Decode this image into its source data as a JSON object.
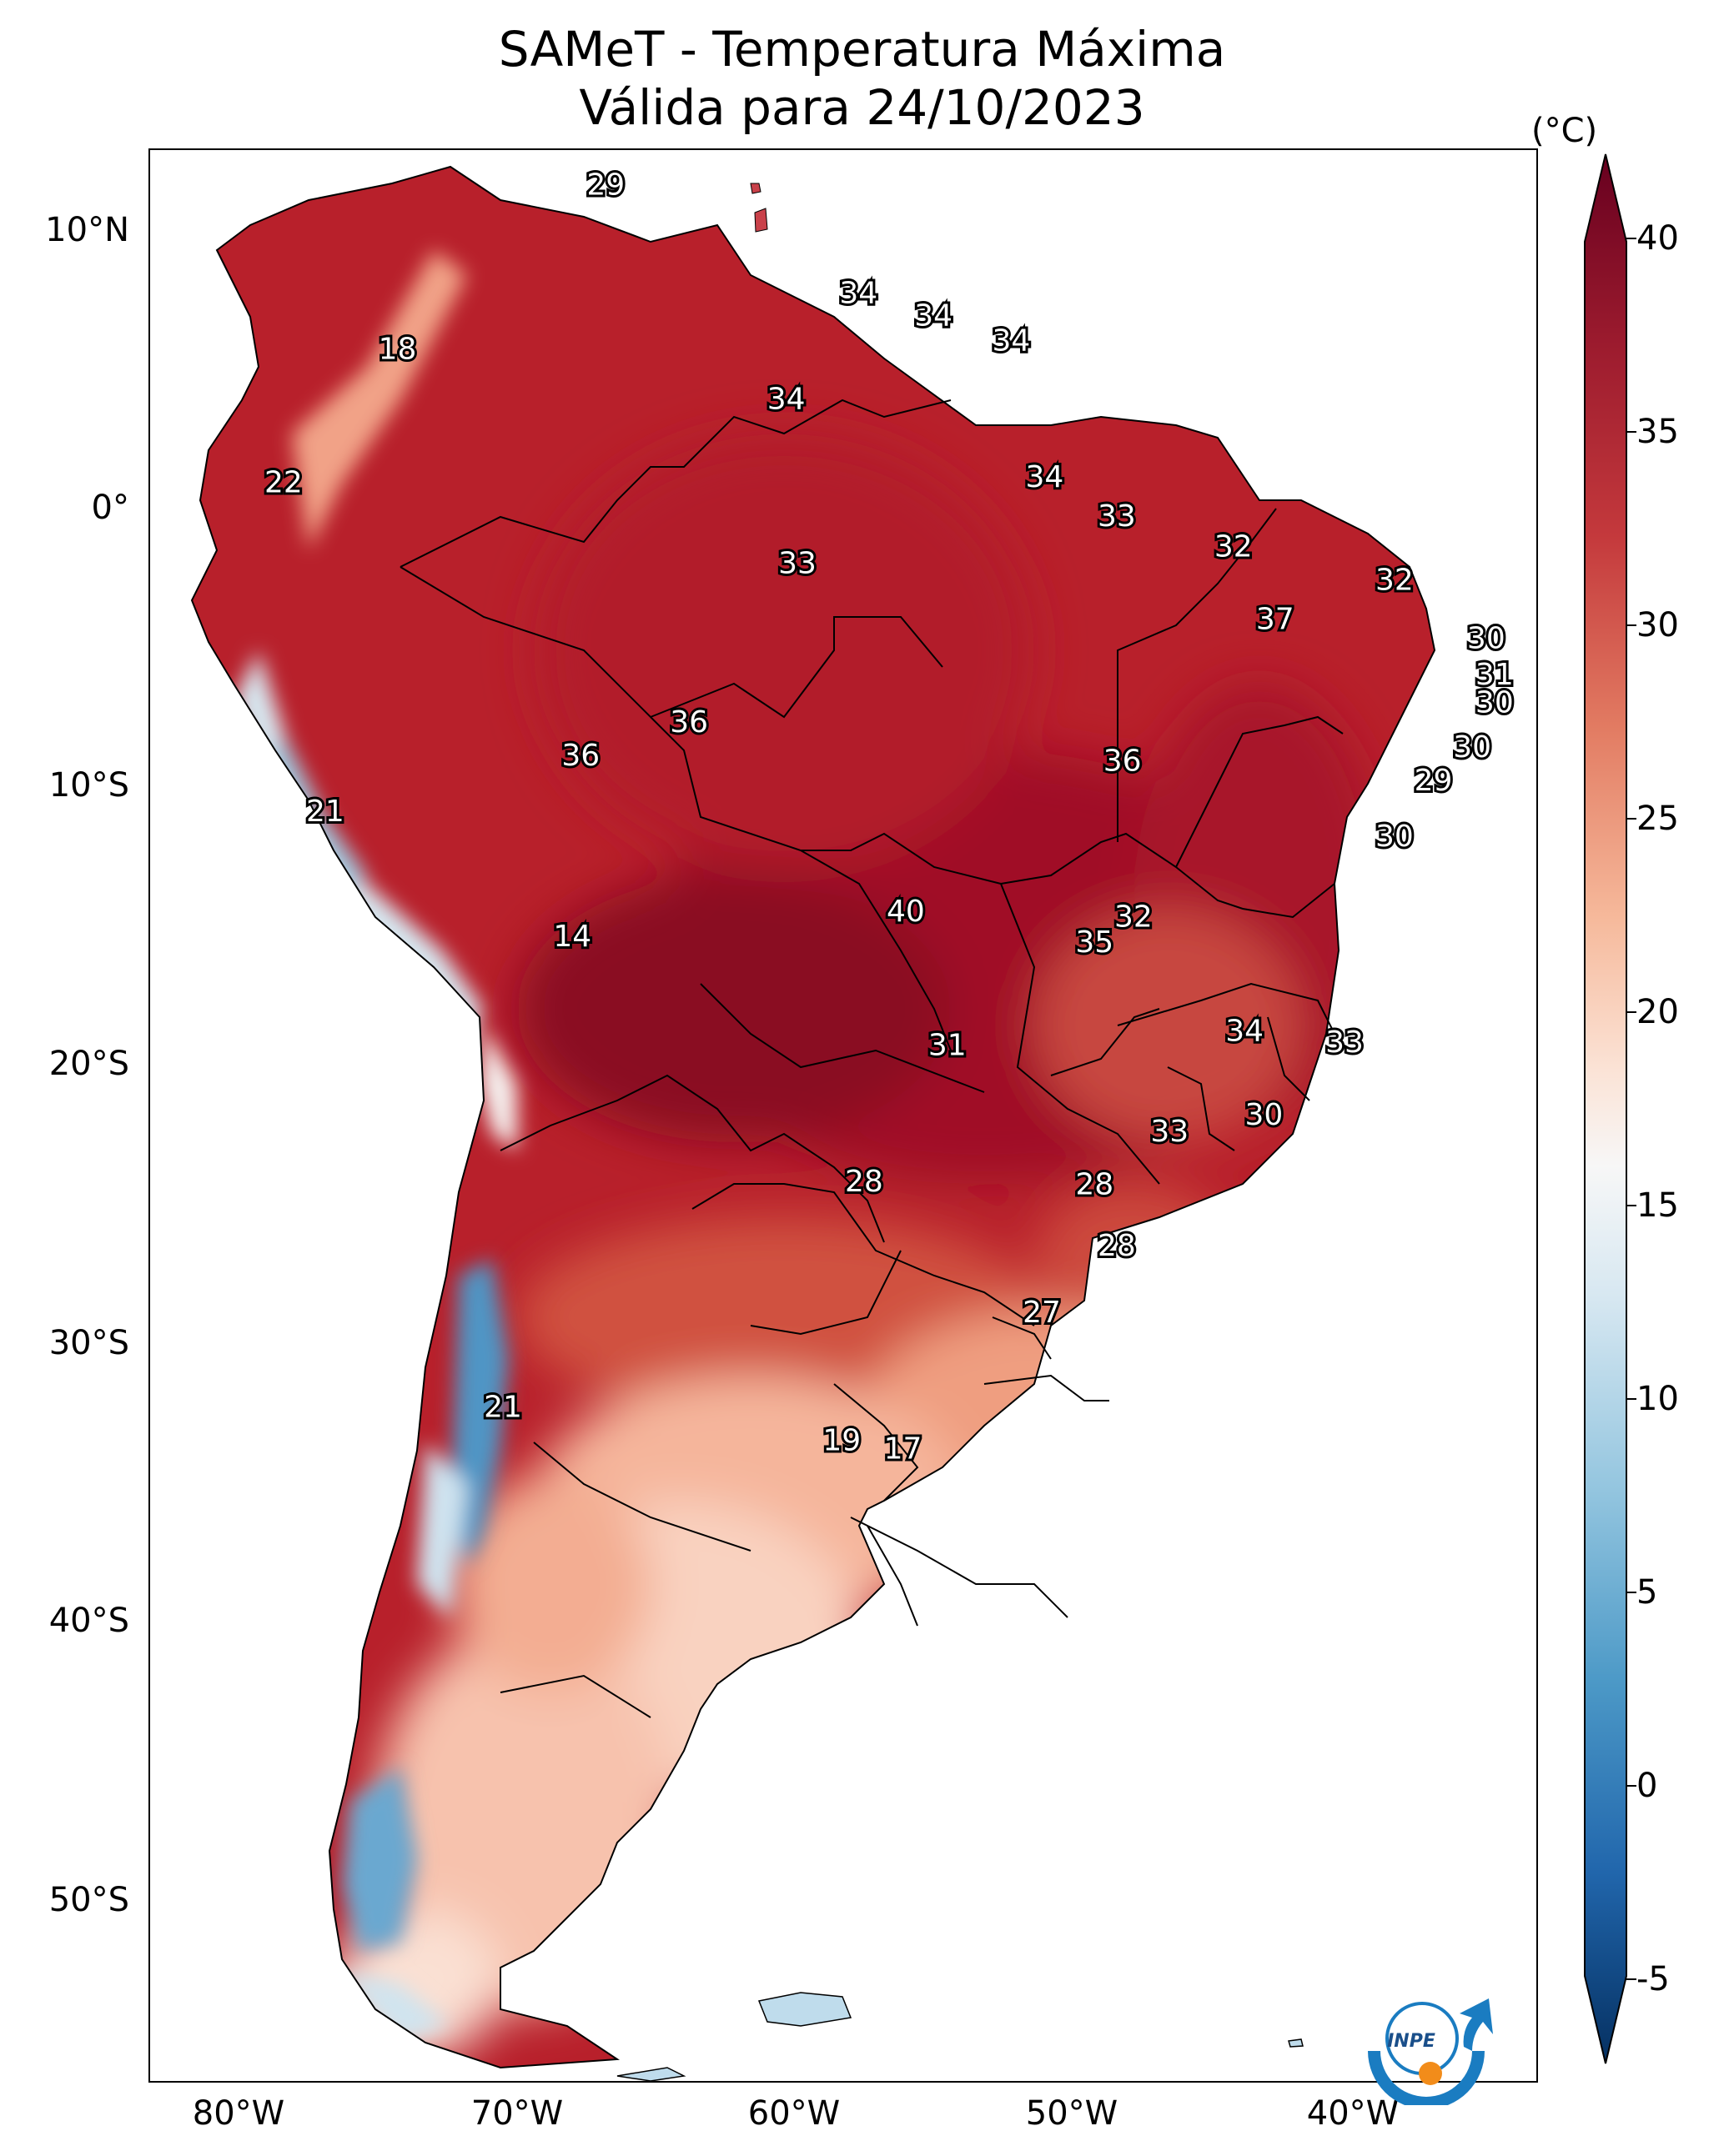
{
  "map": {
    "title_line1": "SAMeT - Temperatura Máxima",
    "title_line2": "Válida para 24/10/2023",
    "lat_labels": [
      "10°N",
      "0°",
      "10°S",
      "20°S",
      "30°S",
      "40°S",
      "50°S"
    ],
    "lon_labels": [
      "80°W",
      "70°W",
      "60°W",
      "50°W",
      "40°W"
    ],
    "colorbar": {
      "unit": "(°C)",
      "ticks": [
        "40",
        "35",
        "30",
        "25",
        "20",
        "15",
        "10",
        "5",
        "0",
        "-5"
      ],
      "range": [
        -7,
        42
      ],
      "colormap": "RdBu_r",
      "extend": "both"
    },
    "station_values": [
      {
        "value": "29",
        "lon": -66.9,
        "lat": 10.5
      },
      {
        "value": "18",
        "lon": -74.4,
        "lat": 4.6
      },
      {
        "value": "34",
        "lon": -57.8,
        "lat": 6.6
      },
      {
        "value": "34",
        "lon": -55.1,
        "lat": 5.8
      },
      {
        "value": "34",
        "lon": -52.3,
        "lat": 4.9
      },
      {
        "value": "34",
        "lon": -60.4,
        "lat": 2.8
      },
      {
        "value": "22",
        "lon": -78.5,
        "lat": -0.2
      },
      {
        "value": "34",
        "lon": -51.1,
        "lat": 0.0
      },
      {
        "value": "33",
        "lon": -48.5,
        "lat": -1.4
      },
      {
        "value": "33",
        "lon": -60.0,
        "lat": -3.1
      },
      {
        "value": "32",
        "lon": -44.3,
        "lat": -2.5
      },
      {
        "value": "32",
        "lon": -38.5,
        "lat": -3.7
      },
      {
        "value": "37",
        "lon": -42.8,
        "lat": -5.1
      },
      {
        "value": "30",
        "lon": -35.2,
        "lat": -5.8
      },
      {
        "value": "31",
        "lon": -34.9,
        "lat": -7.1
      },
      {
        "value": "30",
        "lon": -34.9,
        "lat": -8.1
      },
      {
        "value": "36",
        "lon": -63.9,
        "lat": -8.8
      },
      {
        "value": "36",
        "lon": -67.8,
        "lat": -10.0
      },
      {
        "value": "36",
        "lon": -48.3,
        "lat": -10.2
      },
      {
        "value": "30",
        "lon": -35.7,
        "lat": -9.7
      },
      {
        "value": "29",
        "lon": -37.1,
        "lat": -10.9
      },
      {
        "value": "21",
        "lon": -77.0,
        "lat": -12.0
      },
      {
        "value": "30",
        "lon": -38.5,
        "lat": -12.9
      },
      {
        "value": "40",
        "lon": -56.1,
        "lat": -15.6
      },
      {
        "value": "32",
        "lon": -47.9,
        "lat": -15.8
      },
      {
        "value": "35",
        "lon": -49.3,
        "lat": -16.7
      },
      {
        "value": "14",
        "lon": -68.1,
        "lat": -16.5
      },
      {
        "value": "34",
        "lon": -43.9,
        "lat": -19.9
      },
      {
        "value": "33",
        "lon": -40.3,
        "lat": -20.3
      },
      {
        "value": "31",
        "lon": -54.6,
        "lat": -20.4
      },
      {
        "value": "30",
        "lon": -43.2,
        "lat": -22.9
      },
      {
        "value": "33",
        "lon": -46.6,
        "lat": -23.5
      },
      {
        "value": "28",
        "lon": -57.6,
        "lat": -25.3
      },
      {
        "value": "28",
        "lon": -49.3,
        "lat": -25.4
      },
      {
        "value": "28",
        "lon": -48.5,
        "lat": -27.6
      },
      {
        "value": "27",
        "lon": -51.2,
        "lat": -30.0
      },
      {
        "value": "21",
        "lon": -70.6,
        "lat": -33.4
      },
      {
        "value": "19",
        "lon": -58.4,
        "lat": -34.6
      },
      {
        "value": "17",
        "lon": -56.2,
        "lat": -34.9
      }
    ],
    "logo_text": "INPE"
  }
}
